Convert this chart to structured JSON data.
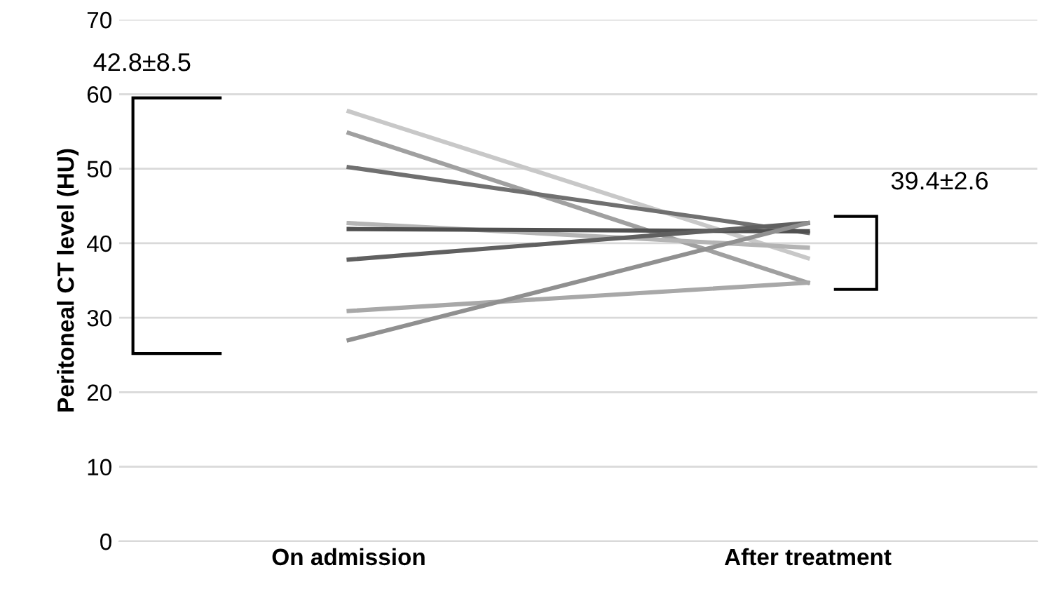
{
  "chart_data": {
    "type": "line",
    "ylabel": "Peritoneal CT level (HU)",
    "categories": [
      "On admission",
      "After treatment"
    ],
    "series": [
      {
        "color": "#c8c8c8",
        "values": [
          57.7,
          38.0
        ]
      },
      {
        "color": "#a0a0a0",
        "values": [
          54.8,
          34.7
        ]
      },
      {
        "color": "#707070",
        "values": [
          50.2,
          41.4
        ]
      },
      {
        "color": "#b4b4b4",
        "values": [
          42.7,
          39.4
        ]
      },
      {
        "color": "#505050",
        "values": [
          41.9,
          41.6
        ]
      },
      {
        "color": "#606060",
        "values": [
          37.8,
          42.7
        ]
      },
      {
        "color": "#a8a8a8",
        "values": [
          30.9,
          34.7
        ]
      },
      {
        "color": "#909090",
        "values": [
          27.0,
          42.7
        ]
      }
    ],
    "ylim": [
      0,
      70
    ],
    "yticks": [
      0,
      10,
      20,
      30,
      40,
      50,
      60,
      70
    ],
    "grid": "y",
    "legend": false,
    "marker": "none",
    "line_style": "solid",
    "annotations": [
      "42.8±8.5",
      "39.4±2.6"
    ]
  }
}
